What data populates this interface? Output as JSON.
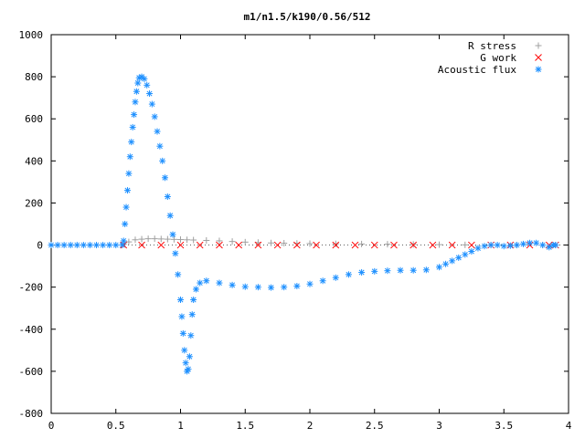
{
  "chart_data": {
    "type": "scatter",
    "title": "m1/n1.5/k190/0.56/512",
    "xlabel": "",
    "ylabel": "",
    "xlim": [
      0,
      4
    ],
    "ylim": [
      -800,
      1000
    ],
    "x_ticks": [
      0,
      0.5,
      1,
      1.5,
      2,
      2.5,
      3,
      3.5,
      4
    ],
    "x_tick_labels": [
      "0",
      "0.5",
      "1",
      "1.5",
      "2",
      "2.5",
      "3",
      "3.5",
      "4"
    ],
    "y_ticks": [
      -800,
      -600,
      -400,
      -200,
      0,
      200,
      400,
      600,
      800,
      1000
    ],
    "y_tick_labels": [
      "-800",
      "-600",
      "-400",
      "-200",
      "0",
      "200",
      "400",
      "600",
      "800",
      "1000"
    ],
    "grid": false,
    "legend_position": "top-right",
    "series": [
      {
        "name": "R stress",
        "marker": "plus",
        "color": "#a0a0a0",
        "points": [
          [
            0.56,
            5
          ],
          [
            0.6,
            15
          ],
          [
            0.65,
            25
          ],
          [
            0.7,
            28
          ],
          [
            0.75,
            30
          ],
          [
            0.8,
            30
          ],
          [
            0.85,
            29
          ],
          [
            0.9,
            28
          ],
          [
            0.95,
            27
          ],
          [
            1.0,
            26
          ],
          [
            1.05,
            25
          ],
          [
            1.1,
            24
          ],
          [
            1.2,
            22
          ],
          [
            1.3,
            20
          ],
          [
            1.4,
            17
          ],
          [
            1.5,
            14
          ],
          [
            1.6,
            12
          ],
          [
            1.7,
            10
          ],
          [
            1.8,
            9
          ],
          [
            1.9,
            8
          ],
          [
            2.0,
            7
          ],
          [
            2.2,
            6
          ],
          [
            2.4,
            5
          ],
          [
            2.6,
            4
          ],
          [
            2.8,
            3
          ],
          [
            3.0,
            2
          ],
          [
            3.2,
            1
          ],
          [
            3.4,
            0
          ],
          [
            3.6,
            0
          ],
          [
            3.8,
            0
          ],
          [
            3.9,
            0
          ]
        ]
      },
      {
        "name": "G work",
        "marker": "cross",
        "color": "#ff0000",
        "points": [
          [
            0.56,
            0
          ],
          [
            0.7,
            0
          ],
          [
            0.85,
            0
          ],
          [
            1.0,
            0
          ],
          [
            1.15,
            0
          ],
          [
            1.3,
            0
          ],
          [
            1.45,
            0
          ],
          [
            1.6,
            0
          ],
          [
            1.75,
            0
          ],
          [
            1.9,
            0
          ],
          [
            2.05,
            0
          ],
          [
            2.2,
            0
          ],
          [
            2.35,
            0
          ],
          [
            2.5,
            0
          ],
          [
            2.65,
            0
          ],
          [
            2.8,
            0
          ],
          [
            2.95,
            0
          ],
          [
            3.1,
            0
          ],
          [
            3.25,
            0
          ],
          [
            3.4,
            0
          ],
          [
            3.55,
            0
          ],
          [
            3.7,
            0
          ],
          [
            3.85,
            0
          ],
          [
            3.9,
            0
          ]
        ]
      },
      {
        "name": "Acoustic flux",
        "marker": "star",
        "color": "#1e90ff",
        "points": [
          [
            0,
            0
          ],
          [
            0.05,
            0
          ],
          [
            0.1,
            0
          ],
          [
            0.15,
            0
          ],
          [
            0.2,
            0
          ],
          [
            0.25,
            0
          ],
          [
            0.3,
            0
          ],
          [
            0.35,
            0
          ],
          [
            0.4,
            0
          ],
          [
            0.45,
            0
          ],
          [
            0.5,
            0
          ],
          [
            0.55,
            0
          ],
          [
            0.56,
            20
          ],
          [
            0.57,
            100
          ],
          [
            0.58,
            180
          ],
          [
            0.59,
            260
          ],
          [
            0.6,
            340
          ],
          [
            0.61,
            420
          ],
          [
            0.62,
            490
          ],
          [
            0.63,
            560
          ],
          [
            0.64,
            620
          ],
          [
            0.65,
            680
          ],
          [
            0.66,
            730
          ],
          [
            0.67,
            770
          ],
          [
            0.68,
            795
          ],
          [
            0.7,
            800
          ],
          [
            0.72,
            790
          ],
          [
            0.74,
            760
          ],
          [
            0.76,
            720
          ],
          [
            0.78,
            670
          ],
          [
            0.8,
            610
          ],
          [
            0.82,
            540
          ],
          [
            0.84,
            470
          ],
          [
            0.86,
            400
          ],
          [
            0.88,
            320
          ],
          [
            0.9,
            230
          ],
          [
            0.92,
            140
          ],
          [
            0.94,
            50
          ],
          [
            0.96,
            -40
          ],
          [
            0.98,
            -140
          ],
          [
            1.0,
            -260
          ],
          [
            1.01,
            -340
          ],
          [
            1.02,
            -420
          ],
          [
            1.03,
            -500
          ],
          [
            1.04,
            -560
          ],
          [
            1.05,
            -600
          ],
          [
            1.06,
            -590
          ],
          [
            1.07,
            -530
          ],
          [
            1.08,
            -430
          ],
          [
            1.09,
            -330
          ],
          [
            1.1,
            -260
          ],
          [
            1.12,
            -210
          ],
          [
            1.15,
            -180
          ],
          [
            1.2,
            -170
          ],
          [
            1.3,
            -180
          ],
          [
            1.4,
            -190
          ],
          [
            1.5,
            -198
          ],
          [
            1.6,
            -200
          ],
          [
            1.7,
            -202
          ],
          [
            1.8,
            -200
          ],
          [
            1.9,
            -195
          ],
          [
            2.0,
            -185
          ],
          [
            2.1,
            -170
          ],
          [
            2.2,
            -155
          ],
          [
            2.3,
            -140
          ],
          [
            2.4,
            -130
          ],
          [
            2.5,
            -125
          ],
          [
            2.6,
            -122
          ],
          [
            2.7,
            -120
          ],
          [
            2.8,
            -120
          ],
          [
            2.9,
            -118
          ],
          [
            3.0,
            -105
          ],
          [
            3.05,
            -90
          ],
          [
            3.1,
            -75
          ],
          [
            3.15,
            -60
          ],
          [
            3.2,
            -45
          ],
          [
            3.25,
            -30
          ],
          [
            3.3,
            -15
          ],
          [
            3.35,
            -5
          ],
          [
            3.4,
            0
          ],
          [
            3.45,
            0
          ],
          [
            3.5,
            -5
          ],
          [
            3.55,
            -3
          ],
          [
            3.6,
            0
          ],
          [
            3.65,
            5
          ],
          [
            3.7,
            10
          ],
          [
            3.75,
            10
          ],
          [
            3.8,
            0
          ],
          [
            3.85,
            -10
          ],
          [
            3.88,
            0
          ],
          [
            3.9,
            0
          ]
        ]
      }
    ]
  }
}
